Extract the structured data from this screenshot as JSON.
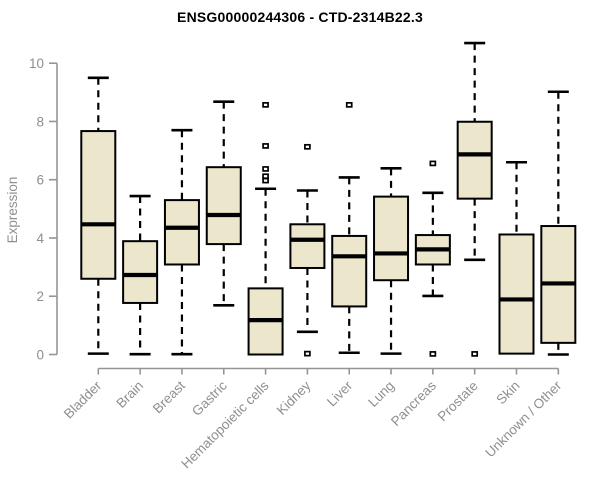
{
  "chart_data": {
    "type": "boxplot",
    "title": "ENSG00000244306 - CTD-2314B22.3",
    "ylabel": "Expression",
    "xlabel": "",
    "ylim": [
      0,
      10.7
    ],
    "yticks": [
      0,
      2,
      4,
      6,
      8,
      10
    ],
    "grid": false,
    "legend": "none",
    "categories": [
      "Bladder",
      "Brain",
      "Breast",
      "Gastric",
      "Hematopoietic cells",
      "Kidney",
      "Liver",
      "Lung",
      "Pancreas",
      "Prostate",
      "Skin",
      "Unknown / Other"
    ],
    "boxes": [
      {
        "label": "Bladder",
        "min": 0.03,
        "q1": 2.6,
        "median": 4.47,
        "q3": 7.67,
        "max": 9.5,
        "outliers": []
      },
      {
        "label": "Brain",
        "min": 0.01,
        "q1": 1.77,
        "median": 2.73,
        "q3": 3.89,
        "max": 5.44,
        "outliers": []
      },
      {
        "label": "Breast",
        "min": 0.01,
        "q1": 3.09,
        "median": 4.35,
        "q3": 5.3,
        "max": 7.7,
        "outliers": []
      },
      {
        "label": "Gastric",
        "min": 1.69,
        "q1": 3.79,
        "median": 4.79,
        "q3": 6.43,
        "max": 8.68,
        "outliers": []
      },
      {
        "label": "Hematopoietic cells",
        "min": 0.0,
        "q1": 0.0,
        "median": 1.18,
        "q3": 2.27,
        "max": 5.69,
        "outliers": [
          8.57,
          7.16,
          6.37,
          6.12,
          5.97
        ]
      },
      {
        "label": "Kidney",
        "min": 0.78,
        "q1": 2.97,
        "median": 3.94,
        "q3": 4.47,
        "max": 5.63,
        "outliers": [
          7.13,
          0.03
        ]
      },
      {
        "label": "Liver",
        "min": 0.06,
        "q1": 1.65,
        "median": 3.37,
        "q3": 4.07,
        "max": 6.08,
        "outliers": [
          8.57
        ]
      },
      {
        "label": "Lung",
        "min": 0.03,
        "q1": 2.55,
        "median": 3.47,
        "q3": 5.42,
        "max": 6.39,
        "outliers": []
      },
      {
        "label": "Pancreas",
        "min": 2.01,
        "q1": 3.09,
        "median": 3.61,
        "q3": 4.1,
        "max": 5.55,
        "outliers": [
          6.56,
          0.02
        ]
      },
      {
        "label": "Prostate",
        "min": 3.25,
        "q1": 5.35,
        "median": 6.87,
        "q3": 7.99,
        "max": 10.69,
        "outliers": [
          0.02
        ]
      },
      {
        "label": "Skin",
        "min": 0.03,
        "q1": 0.03,
        "median": 1.89,
        "q3": 4.12,
        "max": 6.6,
        "outliers": []
      },
      {
        "label": "Unknown / Other",
        "min": 0.0,
        "q1": 0.4,
        "median": 2.44,
        "q3": 4.41,
        "max": 9.02,
        "outliers": []
      }
    ],
    "colors": {
      "box_fill": "#ece6cc",
      "box_border": "#000000",
      "median": "#000000",
      "whisker": "#000000",
      "outlier": "#000000",
      "axis": "#959595",
      "label_text": "#8f8f8f",
      "title_text": "#000000",
      "background": "#ffffff"
    }
  }
}
